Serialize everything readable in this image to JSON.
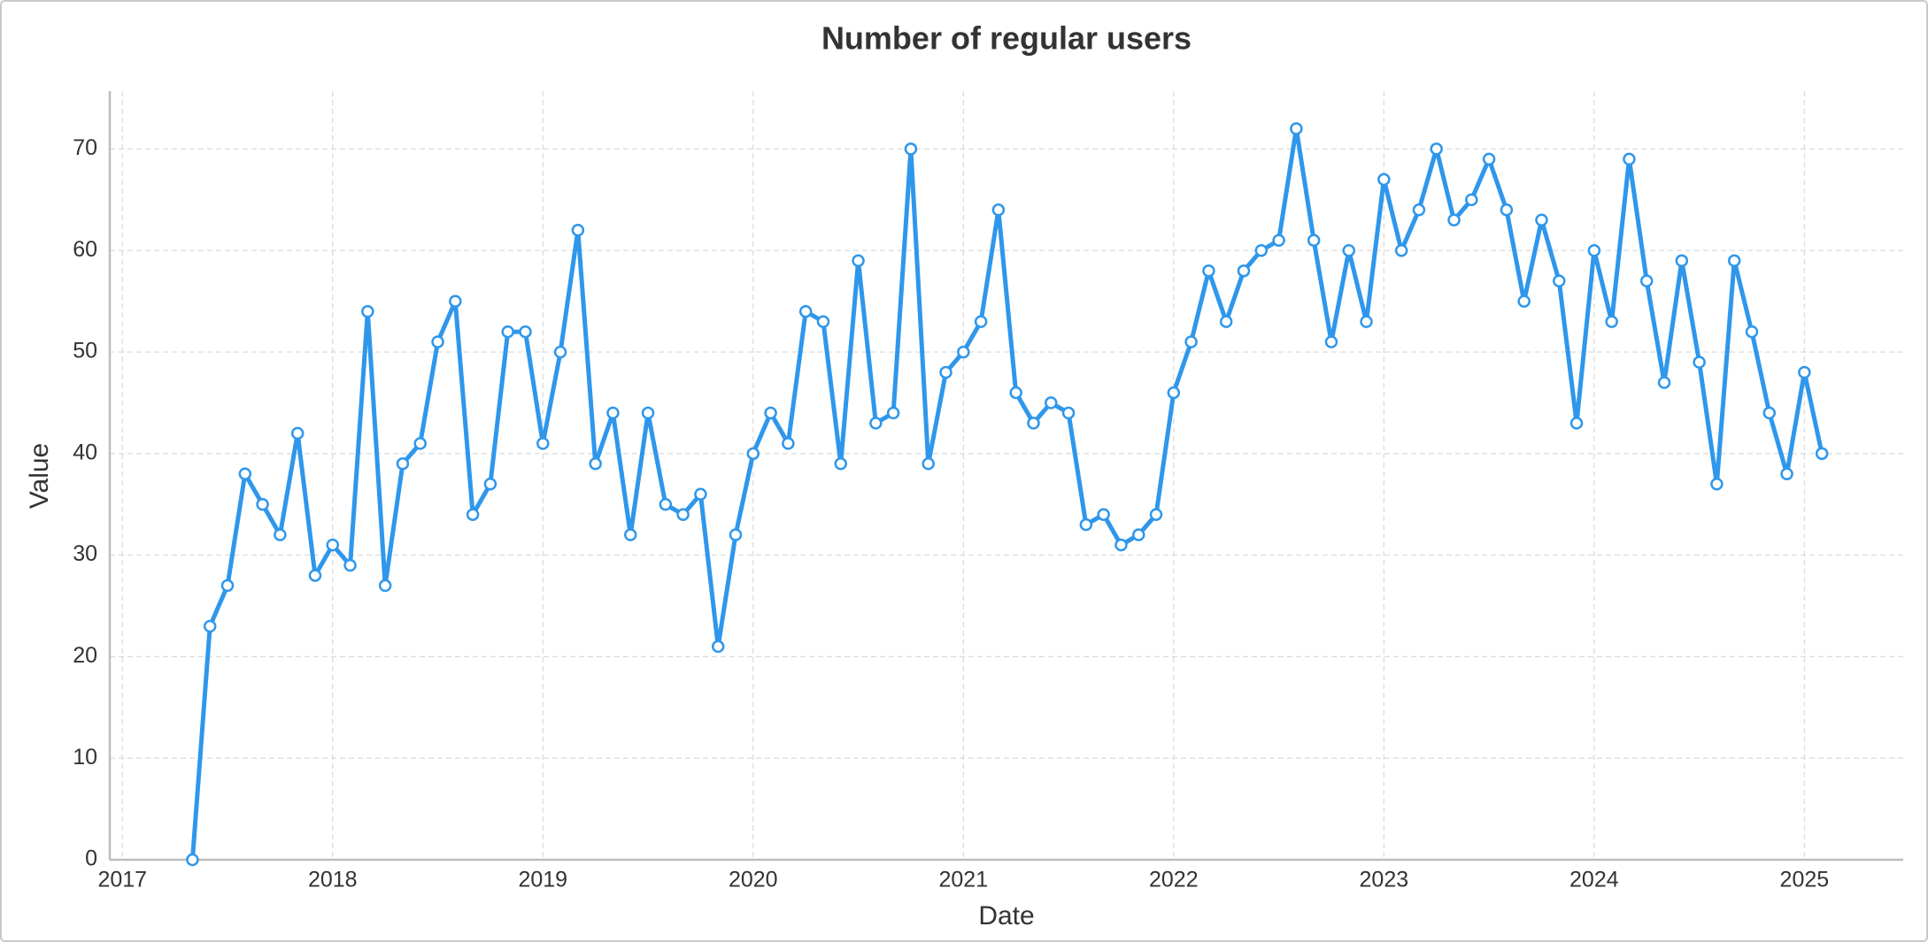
{
  "chart_data": {
    "type": "line",
    "title": "Number of regular users",
    "x_label": "Date",
    "y_label": "Value",
    "x": [
      "2017-05",
      "2017-06",
      "2017-07",
      "2017-08",
      "2017-09",
      "2017-10",
      "2017-11",
      "2017-12",
      "2018-01",
      "2018-02",
      "2018-03",
      "2018-04",
      "2018-05",
      "2018-06",
      "2018-07",
      "2018-08",
      "2018-09",
      "2018-10",
      "2018-11",
      "2018-12",
      "2019-01",
      "2019-02",
      "2019-03",
      "2019-04",
      "2019-05",
      "2019-06",
      "2019-07",
      "2019-08",
      "2019-09",
      "2019-10",
      "2019-11",
      "2019-12",
      "2020-01",
      "2020-02",
      "2020-03",
      "2020-04",
      "2020-05",
      "2020-06",
      "2020-07",
      "2020-08",
      "2020-09",
      "2020-10",
      "2020-11",
      "2020-12",
      "2021-01",
      "2021-02",
      "2021-03",
      "2021-04",
      "2021-05",
      "2021-06",
      "2021-07",
      "2021-08",
      "2021-09",
      "2021-10",
      "2021-11",
      "2021-12",
      "2022-01",
      "2022-02",
      "2022-03",
      "2022-04",
      "2022-05",
      "2022-06",
      "2022-07",
      "2022-08",
      "2022-09",
      "2022-10",
      "2022-11",
      "2022-12",
      "2023-01",
      "2023-02",
      "2023-03",
      "2023-04",
      "2023-05",
      "2023-06",
      "2023-07",
      "2023-08",
      "2023-09",
      "2023-10",
      "2023-11",
      "2023-12",
      "2024-01",
      "2024-02",
      "2024-03",
      "2024-04",
      "2024-05",
      "2024-06",
      "2024-07",
      "2024-08",
      "2024-09",
      "2024-10",
      "2024-11",
      "2024-12",
      "2025-01",
      "2025-02"
    ],
    "values": [
      0,
      23,
      27,
      38,
      35,
      32,
      42,
      28,
      31,
      29,
      54,
      27,
      39,
      41,
      51,
      55,
      34,
      37,
      52,
      52,
      41,
      50,
      62,
      39,
      44,
      32,
      44,
      35,
      34,
      36,
      21,
      32,
      40,
      44,
      41,
      54,
      53,
      39,
      59,
      43,
      44,
      70,
      39,
      48,
      50,
      53,
      64,
      46,
      43,
      45,
      44,
      33,
      34,
      31,
      32,
      34,
      46,
      51,
      58,
      53,
      58,
      60,
      61,
      72,
      61,
      51,
      60,
      53,
      67,
      60,
      64,
      70,
      63,
      65,
      69,
      64,
      55,
      63,
      57,
      43,
      60,
      53,
      69,
      57,
      47,
      59,
      49,
      37,
      59,
      52,
      44,
      38,
      48,
      40
    ],
    "color": "#2f97eb",
    "xlim": [
      2016.94,
      2025.47
    ],
    "xticks": [
      2017,
      2018,
      2019,
      2020,
      2021,
      2022,
      2023,
      2024,
      2025
    ],
    "ylim": [
      0,
      75.7
    ],
    "yticks": [
      0,
      10,
      20,
      30,
      40,
      50,
      60,
      70
    ],
    "grid": true
  }
}
